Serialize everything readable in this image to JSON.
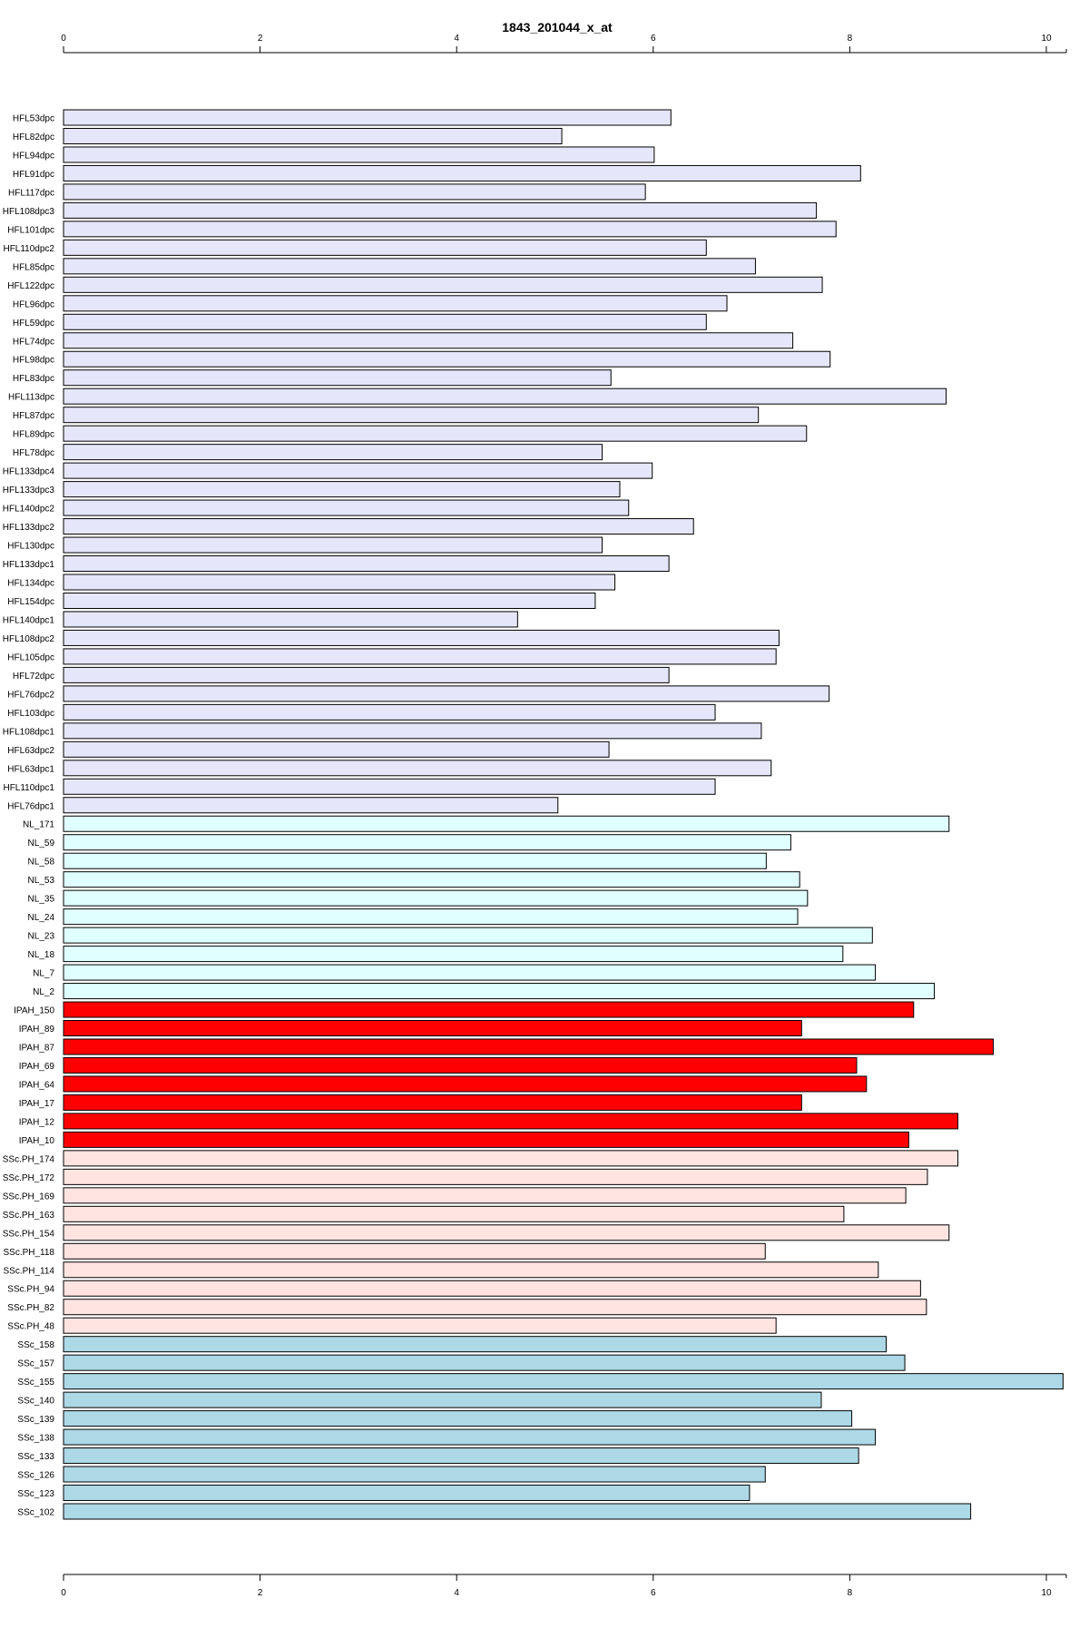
{
  "chart_data": {
    "type": "bar",
    "orientation": "horizontal",
    "title": "1843_201044_x_at",
    "xlim": [
      0,
      10
    ],
    "xticks": [
      "0",
      "2",
      "4",
      "6",
      "8",
      "10"
    ],
    "grid": false,
    "axes": [
      "top",
      "bottom"
    ],
    "group_colors": {
      "HFL": "#e6e6fa",
      "NL": "#e0ffff",
      "IPAH": "#ff0000",
      "SSc.PH": "#ffe4e1",
      "SSc": "#add8e6"
    },
    "categories": [
      "HFL53dpc",
      "HFL82dpc",
      "HFL94dpc",
      "HFL91dpc",
      "HFL117dpc",
      "HFL108dpc3",
      "HFL101dpc",
      "HFL110dpc2",
      "HFL85dpc",
      "HFL122dpc",
      "HFL96dpc",
      "HFL59dpc",
      "HFL74dpc",
      "HFL98dpc",
      "HFL83dpc",
      "HFL113dpc",
      "HFL87dpc",
      "HFL89dpc",
      "HFL78dpc",
      "HFL133dpc4",
      "HFL133dpc3",
      "HFL140dpc2",
      "HFL133dpc2",
      "HFL130dpc",
      "HFL133dpc1",
      "HFL134dpc",
      "HFL154dpc",
      "HFL140dpc1",
      "HFL108dpc2",
      "HFL105dpc",
      "HFL72dpc",
      "HFL76dpc2",
      "HFL103dpc",
      "HFL108dpc1",
      "HFL63dpc2",
      "HFL63dpc1",
      "HFL110dpc1",
      "HFL76dpc1",
      "NL_171",
      "NL_59",
      "NL_58",
      "NL_53",
      "NL_35",
      "NL_24",
      "NL_23",
      "NL_18",
      "NL_7",
      "NL_2",
      "IPAH_150",
      "IPAH_89",
      "IPAH_87",
      "IPAH_69",
      "IPAH_64",
      "IPAH_17",
      "IPAH_12",
      "IPAH_10",
      "SSc.PH_174",
      "SSc.PH_172",
      "SSc.PH_169",
      "SSc.PH_163",
      "SSc.PH_154",
      "SSc.PH_118",
      "SSc.PH_114",
      "SSc.PH_94",
      "SSc.PH_82",
      "SSc.PH_48",
      "SSc_158",
      "SSc_157",
      "SSc_155",
      "SSc_140",
      "SSc_139",
      "SSc_138",
      "SSc_133",
      "SSc_126",
      "SSc_123",
      "SSc_102"
    ],
    "groups": [
      "HFL",
      "HFL",
      "HFL",
      "HFL",
      "HFL",
      "HFL",
      "HFL",
      "HFL",
      "HFL",
      "HFL",
      "HFL",
      "HFL",
      "HFL",
      "HFL",
      "HFL",
      "HFL",
      "HFL",
      "HFL",
      "HFL",
      "HFL",
      "HFL",
      "HFL",
      "HFL",
      "HFL",
      "HFL",
      "HFL",
      "HFL",
      "HFL",
      "HFL",
      "HFL",
      "HFL",
      "HFL",
      "HFL",
      "HFL",
      "HFL",
      "HFL",
      "HFL",
      "HFL",
      "NL",
      "NL",
      "NL",
      "NL",
      "NL",
      "NL",
      "NL",
      "NL",
      "NL",
      "NL",
      "IPAH",
      "IPAH",
      "IPAH",
      "IPAH",
      "IPAH",
      "IPAH",
      "IPAH",
      "IPAH",
      "SSc.PH",
      "SSc.PH",
      "SSc.PH",
      "SSc.PH",
      "SSc.PH",
      "SSc.PH",
      "SSc.PH",
      "SSc.PH",
      "SSc.PH",
      "SSc.PH",
      "SSc",
      "SSc",
      "SSc",
      "SSc",
      "SSc",
      "SSc",
      "SSc",
      "SSc",
      "SSc",
      "SSc"
    ],
    "values": [
      6.18,
      5.07,
      6.01,
      8.11,
      5.92,
      7.66,
      7.86,
      6.54,
      7.04,
      7.72,
      6.75,
      6.54,
      7.42,
      7.8,
      5.57,
      8.98,
      7.07,
      7.56,
      5.48,
      5.99,
      5.66,
      5.75,
      6.41,
      5.48,
      6.16,
      5.61,
      5.41,
      4.62,
      7.28,
      7.25,
      6.16,
      7.79,
      6.63,
      7.1,
      5.55,
      7.2,
      6.63,
      5.03,
      9.01,
      7.4,
      7.15,
      7.49,
      7.57,
      7.47,
      8.23,
      7.93,
      8.26,
      8.86,
      8.65,
      7.51,
      9.46,
      8.07,
      8.17,
      7.51,
      9.1,
      8.6,
      9.1,
      8.79,
      8.57,
      7.94,
      9.01,
      7.14,
      8.29,
      8.72,
      8.78,
      7.25,
      8.37,
      8.56,
      10.17,
      7.71,
      8.02,
      8.26,
      8.09,
      7.14,
      6.98,
      9.23
    ]
  }
}
